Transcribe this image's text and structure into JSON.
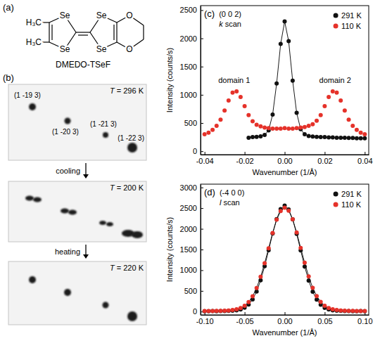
{
  "structure": {
    "label": "(a)",
    "name": "DMEDO-TSeF",
    "atoms": [
      "H₃C",
      "H₃C",
      "Se",
      "Se",
      "Se",
      "Se",
      "O",
      "O"
    ]
  },
  "images": {
    "label": "(b)",
    "steps": [
      "cooling",
      "heating"
    ],
    "panels": [
      {
        "temperature": "T = 296 K",
        "reflections": [
          "(1 -19 3)",
          "(1 -20 3)",
          "(1 -21 3)",
          "(1 -22 3)"
        ]
      },
      {
        "temperature": "T = 200 K"
      },
      {
        "temperature": "T = 220 K"
      }
    ]
  },
  "chart_data": [
    {
      "type": "scatter",
      "panel": "(c)",
      "title": "(0 0 2)",
      "subtitle": "k scan",
      "x_label": "Wavenumber (1/Å)",
      "y_label": "Intensity (counts/s)",
      "xlim": [
        -0.042,
        0.042
      ],
      "ylim": [
        -60,
        2580
      ],
      "xticks": [
        -0.04,
        -0.02,
        {
          "value": 0,
          "label": "0.00"
        },
        0.02,
        0.04
      ],
      "yticks": [
        0,
        500,
        1000,
        1500,
        2000,
        2500
      ],
      "legend": "top-right",
      "annotations": [
        "domain 1",
        "domain 2"
      ],
      "series": [
        {
          "name": "291 K",
          "color": "#111111",
          "marker": "circle",
          "line_style": "solid",
          "x": [
            -0.018,
            -0.016,
            -0.014,
            -0.012,
            -0.01,
            -0.008,
            -0.006,
            -0.004,
            -0.002,
            0,
            0.002,
            0.004,
            0.006,
            0.008,
            0.01,
            0.012,
            0.014,
            0.016,
            0.018,
            0.02,
            0.022,
            0.024,
            0.026,
            0.028,
            0.03,
            0.032,
            0.034,
            0.036,
            0.038,
            0.04
          ],
          "values": [
            240,
            250,
            255,
            265,
            290,
            370,
            650,
            1200,
            1900,
            2300,
            1950,
            1250,
            680,
            390,
            300,
            270,
            260,
            255,
            250,
            250,
            245,
            245,
            240,
            240,
            240,
            235,
            235,
            230,
            230,
            230
          ]
        },
        {
          "name": "110 K",
          "color": "#e5322a",
          "marker": "circle",
          "line_style": "none",
          "x": [
            -0.04,
            -0.038,
            -0.036,
            -0.034,
            -0.032,
            -0.03,
            -0.028,
            -0.026,
            -0.024,
            -0.022,
            -0.02,
            -0.018,
            -0.016,
            -0.014,
            -0.012,
            -0.01,
            -0.008,
            -0.006,
            -0.004,
            -0.002,
            0,
            0.002,
            0.004,
            0.006,
            0.008,
            0.01,
            0.012,
            0.014,
            0.016,
            0.018,
            0.02,
            0.022,
            0.024,
            0.026,
            0.028,
            0.03,
            0.032,
            0.034,
            0.036,
            0.038,
            0.04
          ],
          "values": [
            300,
            330,
            380,
            450,
            560,
            720,
            900,
            1040,
            1060,
            960,
            800,
            640,
            530,
            470,
            440,
            420,
            410,
            400,
            400,
            400,
            410,
            400,
            400,
            410,
            420,
            430,
            450,
            480,
            540,
            640,
            800,
            960,
            1060,
            1040,
            900,
            720,
            560,
            450,
            380,
            330,
            300
          ]
        }
      ]
    },
    {
      "type": "scatter",
      "panel": "(d)",
      "title": "(-4 0 0)",
      "subtitle": "l scan",
      "x_label": "Wavenumber (1/Å)",
      "y_label": "Intensity (counts/s)",
      "xlim": [
        -0.105,
        0.105
      ],
      "ylim": [
        -80,
        3080
      ],
      "xticks": [
        {
          "value": -0.1,
          "label": "-0.10"
        },
        -0.05,
        {
          "value": 0,
          "label": "0.00"
        },
        0.05,
        {
          "value": 0.1,
          "label": "0.10"
        }
      ],
      "yticks": [
        0,
        500,
        1000,
        1500,
        2000,
        2500,
        3000
      ],
      "legend": "top-right",
      "series": [
        {
          "name": "291 K",
          "color": "#111111",
          "marker": "circle",
          "line_style": "solid",
          "x": [
            -0.1,
            -0.095,
            -0.09,
            -0.085,
            -0.08,
            -0.075,
            -0.07,
            -0.065,
            -0.06,
            -0.055,
            -0.05,
            -0.045,
            -0.04,
            -0.035,
            -0.03,
            -0.025,
            -0.02,
            -0.015,
            -0.01,
            -0.005,
            0,
            0.005,
            0.01,
            0.015,
            0.02,
            0.025,
            0.03,
            0.035,
            0.04,
            0.045,
            0.05,
            0.055,
            0.06,
            0.065,
            0.07,
            0.075,
            0.08,
            0.085,
            0.09,
            0.095,
            0.1
          ],
          "values": [
            10,
            10,
            12,
            10,
            12,
            15,
            18,
            22,
            32,
            52,
            95,
            170,
            295,
            485,
            755,
            1095,
            1485,
            1885,
            2235,
            2475,
            2560,
            2470,
            2230,
            1880,
            1480,
            1090,
            750,
            480,
            290,
            165,
            90,
            50,
            30,
            20,
            16,
            14,
            12,
            10,
            10,
            12,
            10
          ]
        },
        {
          "name": "110 K",
          "color": "#e5322a",
          "marker": "circle",
          "line_style": "solid",
          "x": [
            -0.1,
            -0.095,
            -0.09,
            -0.085,
            -0.08,
            -0.075,
            -0.07,
            -0.065,
            -0.06,
            -0.055,
            -0.05,
            -0.045,
            -0.04,
            -0.035,
            -0.03,
            -0.025,
            -0.02,
            -0.015,
            -0.01,
            -0.005,
            0,
            0.005,
            0.01,
            0.015,
            0.02,
            0.025,
            0.03,
            0.035,
            0.04,
            0.045,
            0.05,
            0.055,
            0.06,
            0.065,
            0.07,
            0.075,
            0.08,
            0.085,
            0.09,
            0.095,
            0.1
          ],
          "values": [
            15,
            15,
            15,
            18,
            18,
            22,
            28,
            38,
            55,
            85,
            140,
            230,
            370,
            570,
            840,
            1170,
            1530,
            1900,
            2220,
            2430,
            2510,
            2440,
            2230,
            1910,
            1540,
            1180,
            850,
            575,
            375,
            235,
            140,
            85,
            55,
            38,
            28,
            22,
            18,
            16,
            15,
            15,
            15
          ]
        }
      ]
    }
  ]
}
